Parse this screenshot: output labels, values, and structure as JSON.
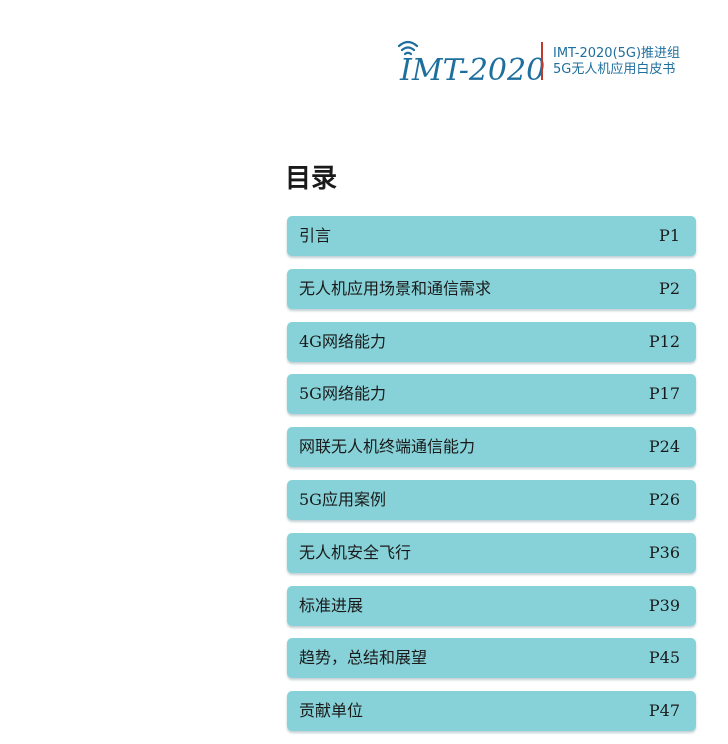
{
  "header": {
    "logo_text": "IMT-2020",
    "line1": "IMT-2020(5G)推进组",
    "line2": "5G无人机应用白皮书",
    "accent_color": "#1f6f9e",
    "divider_color": "#c0392b"
  },
  "toc": {
    "title": "目录",
    "item_color": "#86d2d8",
    "items": [
      {
        "label": "引言",
        "page": "P1"
      },
      {
        "label": "无人机应用场景和通信需求",
        "page": "P2"
      },
      {
        "label": "4G网络能力",
        "page": "P12"
      },
      {
        "label": "5G网络能力",
        "page": "P17"
      },
      {
        "label": "网联无人机终端通信能力",
        "page": "P24"
      },
      {
        "label": "5G应用案例",
        "page": "P26"
      },
      {
        "label": "无人机安全飞行",
        "page": "P36"
      },
      {
        "label": "标准进展",
        "page": "P39"
      },
      {
        "label": "趋势，总结和展望",
        "page": "P45"
      },
      {
        "label": "贡献单位",
        "page": "P47"
      }
    ]
  }
}
